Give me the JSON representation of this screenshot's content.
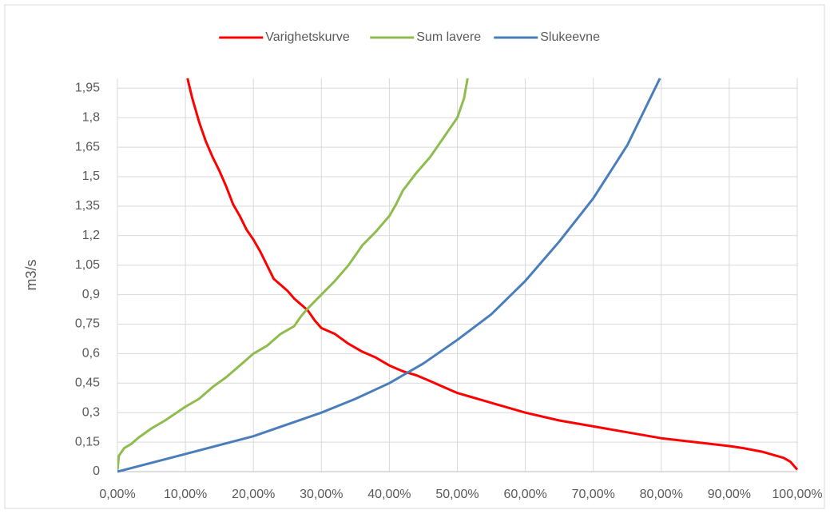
{
  "chart_data": {
    "type": "line",
    "y_label": "m3/s",
    "xlim": [
      0,
      100
    ],
    "ylim": [
      0,
      2
    ],
    "grid": true,
    "legend": "top",
    "xticks": [
      {
        "value": 0,
        "label": "0,00%"
      },
      {
        "value": 10,
        "label": "10,00%"
      },
      {
        "value": 20,
        "label": "20,00%"
      },
      {
        "value": 30,
        "label": "30,00%"
      },
      {
        "value": 40,
        "label": "40,00%"
      },
      {
        "value": 50,
        "label": "50,00%"
      },
      {
        "value": 60,
        "label": "60,00%"
      },
      {
        "value": 70,
        "label": "70,00%"
      },
      {
        "value": 80,
        "label": "80,00%"
      },
      {
        "value": 90,
        "label": "90,00%"
      },
      {
        "value": 100,
        "label": "100,00%"
      }
    ],
    "yticks": [
      0,
      {
        "value": 0.15,
        "label": "0,15"
      },
      {
        "value": 0.3,
        "label": "0,3"
      },
      {
        "value": 0.45,
        "label": "0,45"
      },
      {
        "value": 0.6,
        "label": "0,6"
      },
      {
        "value": 0.75,
        "label": "0,75"
      },
      {
        "value": 0.9,
        "label": "0,9"
      },
      {
        "value": 1.05,
        "label": "1,05"
      },
      {
        "value": 1.2,
        "label": "1,2"
      },
      {
        "value": 1.35,
        "label": "1,35"
      },
      {
        "value": 1.5,
        "label": "1,5"
      },
      {
        "value": 1.65,
        "label": "1,65"
      },
      {
        "value": 1.8,
        "label": "1,8"
      },
      {
        "value": 1.95,
        "label": "1,95"
      }
    ],
    "series": [
      {
        "name": "Varighetskurve",
        "color": "#ff0000",
        "x": [
          10.3,
          11,
          12,
          13,
          14,
          15,
          16,
          17,
          18,
          19,
          20,
          21,
          22,
          23,
          24,
          25,
          26,
          27,
          28,
          29,
          30,
          32,
          34,
          36,
          38,
          40,
          42,
          44,
          46,
          48,
          50,
          52,
          54,
          56,
          60,
          65,
          70,
          75,
          80,
          85,
          90,
          92,
          95,
          98,
          99,
          100
        ],
        "values": [
          2.0,
          1.9,
          1.78,
          1.68,
          1.6,
          1.53,
          1.45,
          1.36,
          1.3,
          1.23,
          1.18,
          1.12,
          1.05,
          0.98,
          0.95,
          0.92,
          0.88,
          0.85,
          0.82,
          0.77,
          0.73,
          0.7,
          0.65,
          0.61,
          0.58,
          0.54,
          0.51,
          0.49,
          0.46,
          0.43,
          0.4,
          0.38,
          0.36,
          0.34,
          0.3,
          0.26,
          0.23,
          0.2,
          0.17,
          0.15,
          0.13,
          0.12,
          0.1,
          0.07,
          0.05,
          0.01
        ]
      },
      {
        "name": "Sum lavere",
        "color": "#8fbc4f",
        "x": [
          0,
          0.2,
          1,
          2,
          3,
          5,
          7,
          10,
          12,
          14,
          16,
          18,
          20,
          22,
          24,
          26,
          27,
          28,
          30,
          32,
          34,
          36,
          38,
          40,
          41,
          42,
          44,
          46,
          48,
          50,
          51,
          51.5
        ],
        "values": [
          0,
          0.08,
          0.12,
          0.14,
          0.17,
          0.22,
          0.26,
          0.33,
          0.37,
          0.43,
          0.48,
          0.54,
          0.6,
          0.64,
          0.7,
          0.74,
          0.79,
          0.83,
          0.9,
          0.97,
          1.05,
          1.15,
          1.22,
          1.3,
          1.36,
          1.43,
          1.52,
          1.6,
          1.7,
          1.8,
          1.9,
          2.0
        ]
      },
      {
        "name": "Slukeevne",
        "color": "#4a7ebb",
        "x": [
          0,
          10,
          20,
          30,
          35,
          40,
          45,
          50,
          55,
          60,
          65,
          70,
          75,
          79.8
        ],
        "values": [
          0,
          0.09,
          0.18,
          0.3,
          0.37,
          0.45,
          0.55,
          0.67,
          0.8,
          0.97,
          1.17,
          1.39,
          1.66,
          2.0
        ]
      }
    ]
  }
}
